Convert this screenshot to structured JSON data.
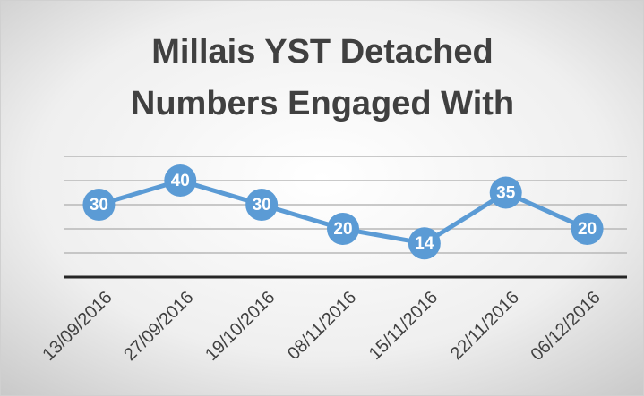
{
  "chart_data": {
    "type": "line",
    "title": [
      "Millais YST Detached",
      "Numbers Engaged With"
    ],
    "categories": [
      "13/09/2016",
      "27/09/2016",
      "19/10/2016",
      "08/11/2016",
      "15/11/2016",
      "22/11/2016",
      "06/12/2016"
    ],
    "values": [
      30,
      40,
      30,
      20,
      14,
      35,
      20
    ],
    "color": "#5b9bd5",
    "ylim": [
      0,
      50
    ],
    "yticks": [
      0,
      10,
      20,
      30,
      40,
      50
    ],
    "grid": true
  }
}
